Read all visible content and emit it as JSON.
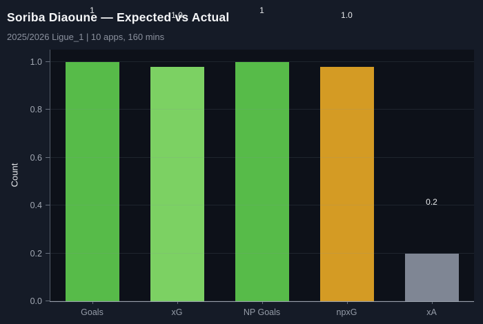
{
  "header": {
    "title": "Soriba Diaoune — Expected vs Actual",
    "subtitle": "2025/2026 Ligue_1 | 10 apps, 160 mins"
  },
  "chart_data": {
    "type": "bar",
    "title": "Soriba Diaoune — Expected vs Actual",
    "subtitle": "2025/2026 Ligue_1 | 10 apps, 160 mins",
    "categories": [
      "Goals",
      "xG",
      "NP Goals",
      "npxG",
      "xA"
    ],
    "values": [
      1.0,
      0.98,
      1.0,
      0.98,
      0.2
    ],
    "value_labels": [
      "1",
      "1.0",
      "1",
      "1.0",
      "0.2"
    ],
    "bar_colors": [
      "#57bb49",
      "#7cd163",
      "#57bb49",
      "#d49b24",
      "#7f8694"
    ],
    "xlabel": "",
    "ylabel": "Count",
    "ylim": [
      0,
      1.052
    ],
    "yticks": [
      0.0,
      0.2,
      0.4,
      0.6,
      0.8,
      1.0
    ],
    "ytick_labels": [
      "0.0",
      "0.2",
      "0.4",
      "0.6",
      "0.8",
      "1.0"
    ],
    "grid": true,
    "legend_position": "none",
    "colors": {
      "page_bg": "#151b27",
      "plot_bg": "#0d1119",
      "title_text": "#f3f4f6",
      "subtitle_text": "#8b919e",
      "tick_text": "#a3a9b4",
      "value_label_text": "#e8eaec",
      "gridline": "rgba(130,140,160,0.16)",
      "spine_left": "#555d6b",
      "spine_bottom": "#9aa1ad"
    }
  }
}
